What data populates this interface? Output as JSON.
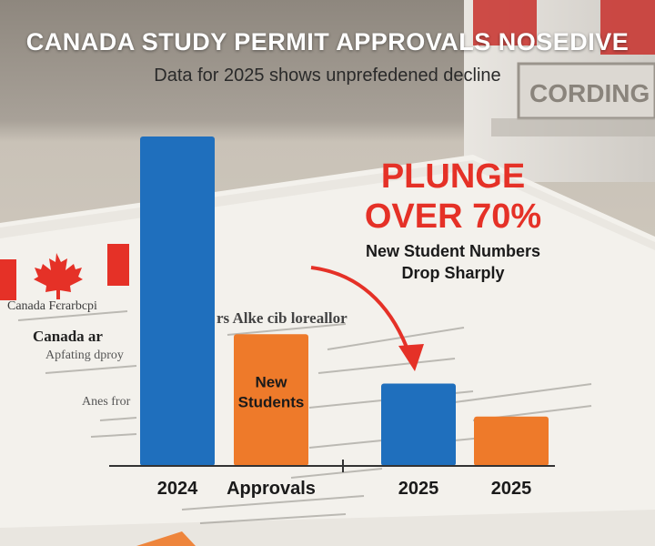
{
  "header": {
    "title": "CANADA STUDY PERMIT APPROVALS NOSEDIVE",
    "subtitle": "Data for 2025 shows unprefedened decline"
  },
  "callout": {
    "headline_line1": "PLUNGE",
    "headline_line2": "OVER 70%",
    "subline_line1": "New Student Numbers",
    "subline_line2": "Drop Sharply"
  },
  "background": {
    "doc_line1": "Canada Fєrarbcpi",
    "doc_line2": "Canada ar",
    "doc_line3": "rs Alke cib loreallor",
    "doc_line4": "Apfating dproy",
    "doc_line5": "Anes fror",
    "sign_text": "CORDING"
  },
  "colors": {
    "approvals": "#1f6fbd",
    "new_students": "#ee7a2a",
    "accent_red": "#e53127",
    "background_top": "#9c958b",
    "paper": "#f3f1ec"
  },
  "chart_data": {
    "type": "bar",
    "title": "CANADA STUDY PERMIT APPROVALS NOSEDIVE",
    "subtitle": "Data for 2025 shows unprefedened decline",
    "xlabel": "",
    "ylabel": "",
    "grid": false,
    "legend": "none",
    "categories": [
      "2024",
      "Approvals",
      "2025",
      "2025"
    ],
    "bars": [
      {
        "category": "2024",
        "series": "approvals",
        "value": 100
      },
      {
        "category": "Approvals",
        "series": "new_students",
        "value": 40,
        "label": "New Students"
      },
      {
        "category": "2025",
        "series": "approvals",
        "value": 25
      },
      {
        "category": "2025",
        "series": "new_students",
        "value": 15
      }
    ],
    "ylim": [
      0,
      100
    ],
    "annotations": [
      "PLUNGE OVER 70%",
      "New Student Numbers Drop Sharply"
    ]
  }
}
